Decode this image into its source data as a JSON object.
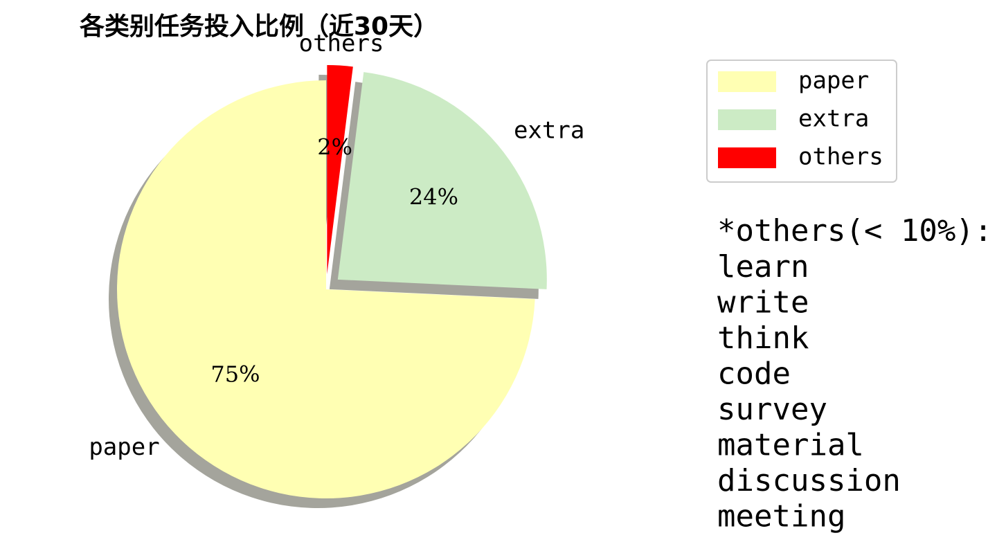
{
  "chart_data": {
    "type": "pie",
    "title": "各类别任务投入比例（近30天）",
    "start_angle_deg": 90,
    "direction": "counterclockwise",
    "shadow": true,
    "slices": [
      {
        "label": "paper",
        "percent": 75,
        "pct_label": "75%",
        "color": "#ffffb3",
        "explode": false
      },
      {
        "label": "extra",
        "percent": 24,
        "pct_label": "24%",
        "color": "#ccebc5",
        "explode": true
      },
      {
        "label": "others",
        "percent": 2,
        "pct_label": "2%",
        "color": "#ff0000",
        "explode": true
      }
    ],
    "legend": {
      "placement": "top-right",
      "entries": [
        "paper",
        "extra",
        "others"
      ]
    }
  },
  "note": {
    "heading": "*others(< 10%):",
    "items": [
      "learn",
      "write",
      "think",
      "code",
      "survey",
      "material",
      "discussion",
      "meeting"
    ]
  }
}
